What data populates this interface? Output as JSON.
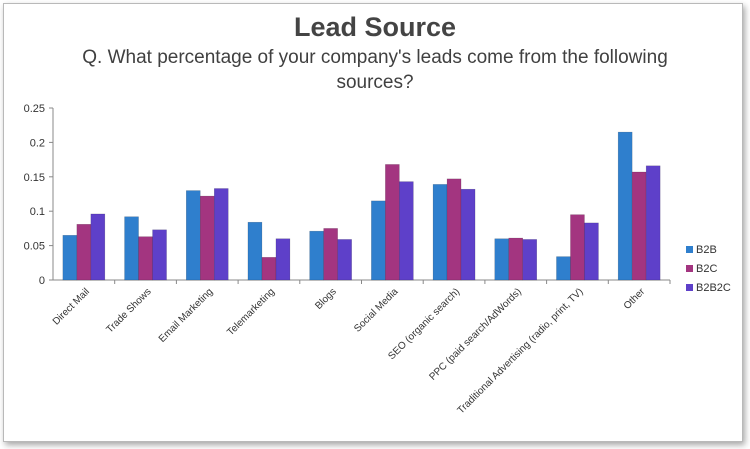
{
  "chart_data": {
    "type": "bar",
    "title": "Lead Source",
    "subtitle": "Q. What percentage of your company's leads come from the following sources?",
    "xlabel": "",
    "ylabel": "",
    "ylim": [
      0,
      0.25
    ],
    "yticks": [
      "0",
      "0.05",
      "0.1",
      "0.15",
      "0.2",
      "0.25"
    ],
    "grid": false,
    "legend_position": "right",
    "categories": [
      "Direct Mail",
      "Trade Shows",
      "Email Marketing",
      "Telemarketing",
      "Blogs",
      "Social Media",
      "SEO (organic search)",
      "PPC (paid search/AdWords)",
      "Traditional Advertising (radio, print, TV)",
      "Other"
    ],
    "series": [
      {
        "name": "B2B",
        "color": "#2f7fcd",
        "values": [
          0.065,
          0.092,
          0.13,
          0.084,
          0.071,
          0.115,
          0.139,
          0.06,
          0.034,
          0.215
        ]
      },
      {
        "name": "B2C",
        "color": "#a33580",
        "values": [
          0.081,
          0.063,
          0.122,
          0.033,
          0.075,
          0.168,
          0.147,
          0.061,
          0.095,
          0.157
        ]
      },
      {
        "name": "B2B2C",
        "color": "#5e40c9",
        "values": [
          0.096,
          0.073,
          0.133,
          0.06,
          0.059,
          0.143,
          0.132,
          0.059,
          0.083,
          0.166
        ]
      }
    ]
  }
}
